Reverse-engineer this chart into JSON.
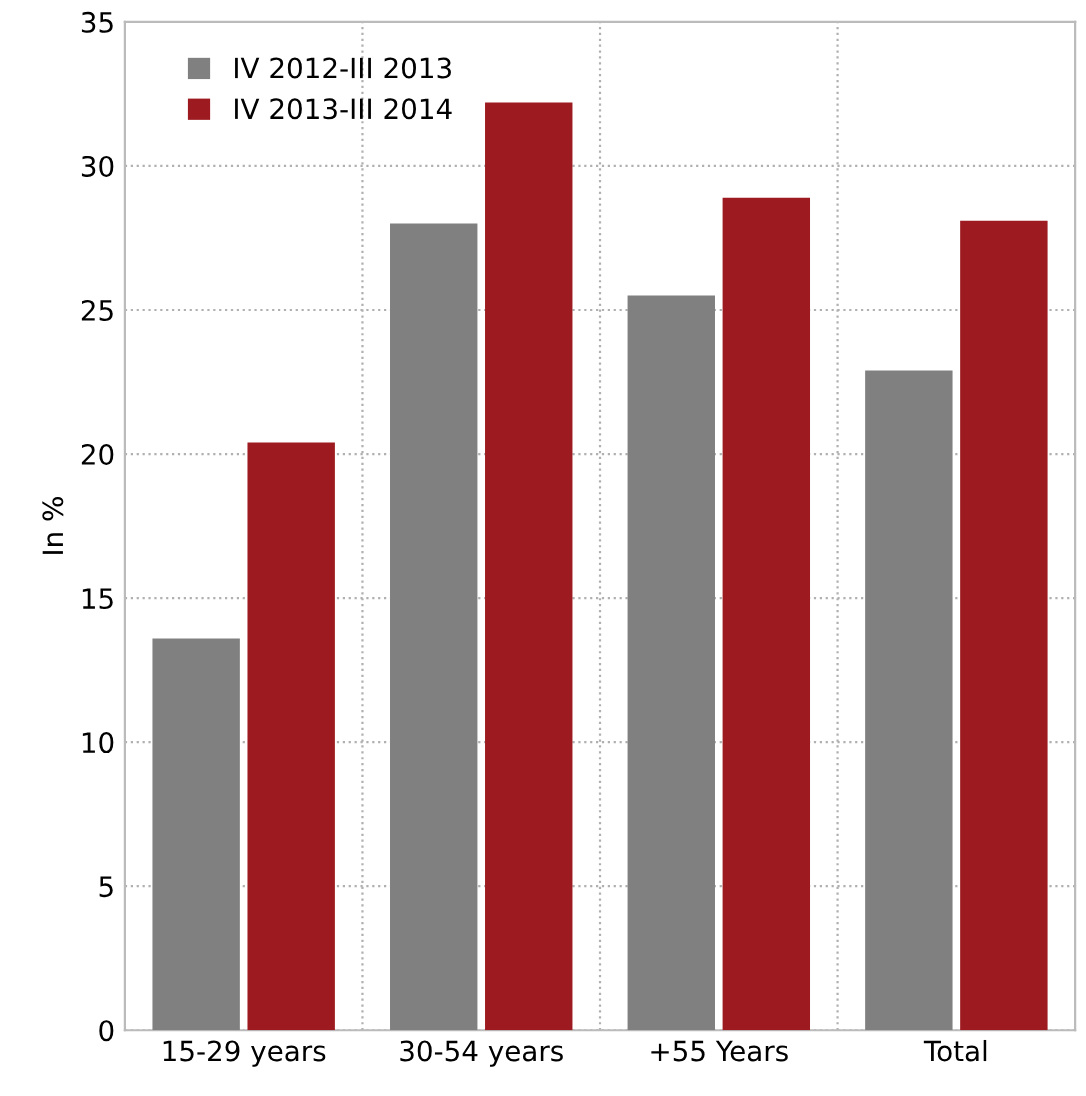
{
  "chart_data": {
    "type": "bar",
    "ylabel": "In %",
    "categories": [
      "15-29 years",
      "30-54 years",
      "+55 Years",
      "Total"
    ],
    "series": [
      {
        "name": "IV 2012-III 2013",
        "color": "#808080",
        "values": [
          13.6,
          28.0,
          25.5,
          22.9
        ]
      },
      {
        "name": "IV 2013-III 2014",
        "color": "#9d1b20",
        "values": [
          20.4,
          32.2,
          28.9,
          28.1
        ]
      }
    ],
    "ylim": [
      0,
      35
    ],
    "yticks": [
      0,
      5,
      10,
      15,
      20,
      25,
      30,
      35
    ],
    "grid": true,
    "legend": "top left"
  }
}
